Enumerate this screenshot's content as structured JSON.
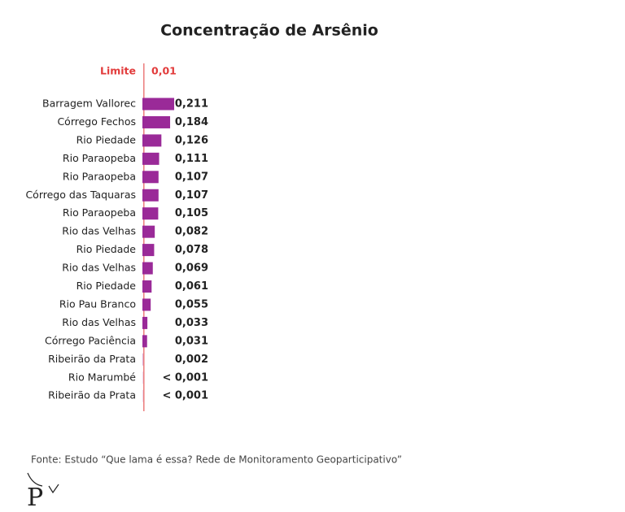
{
  "chart_data": {
    "type": "bar",
    "orientation": "horizontal",
    "title": "Concentração de Arsênio",
    "categories": [
      "Barragem Vallorec",
      "Córrego Fechos",
      "Rio Piedade",
      "Rio Paraopeba",
      "Rio Paraopeba",
      "Córrego das Taquaras",
      "Rio Paraopeba",
      "Rio das Velhas",
      "Rio Piedade",
      "Rio das Velhas",
      "Rio Piedade",
      "Rio Pau Branco",
      "Rio das Velhas",
      "Córrego Paciência",
      "Ribeirão da Prata",
      "Rio Marumbé",
      "Ribeirão da Prata"
    ],
    "values": [
      0.211,
      0.184,
      0.126,
      0.111,
      0.107,
      0.107,
      0.105,
      0.082,
      0.078,
      0.069,
      0.061,
      0.055,
      0.033,
      0.031,
      0.002,
      0.001,
      0.001
    ],
    "value_labels": [
      "0,211",
      "0,184",
      "0,126",
      "0,111",
      "0,107",
      "0,107",
      "0,105",
      "0,082",
      "0,078",
      "0,069",
      "0,061",
      "0,055",
      "0,033",
      "0,031",
      "0,002",
      "< 0,001",
      "< 0,001"
    ],
    "color": "#9a2a98",
    "limit": {
      "label": "Limite",
      "value": 0.01,
      "value_label": "0,01",
      "color": "#e23b3b"
    },
    "source": "Fonte: Estudo “Que lama é essa? Rede de Monitoramento Geoparticipativo”",
    "logo": "P"
  }
}
